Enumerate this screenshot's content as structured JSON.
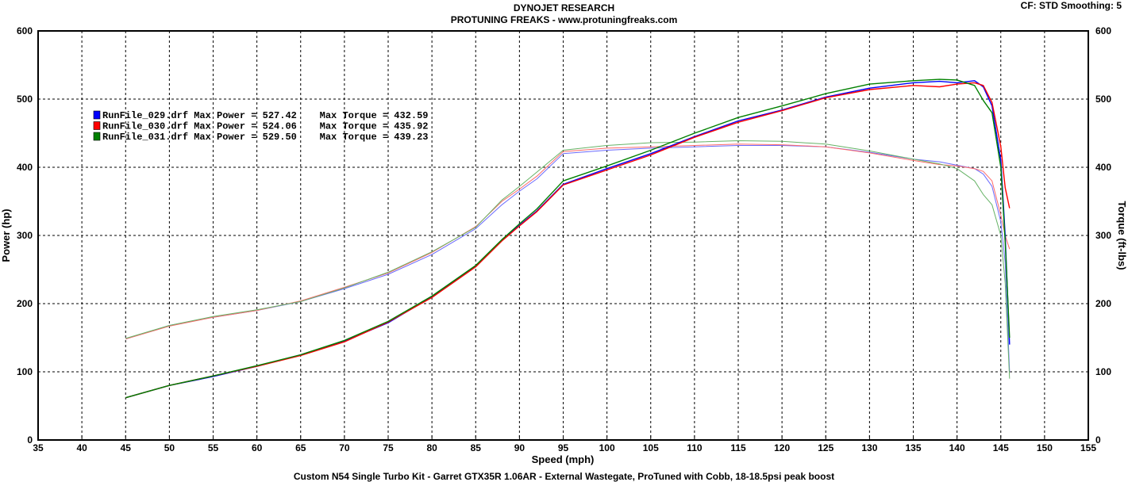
{
  "header": {
    "line1": "DYNOJET RESEARCH",
    "line2": "PROTUNING FREAKS - www.protuningfreaks.com",
    "cf": "CF: STD  Smoothing: 5"
  },
  "footer": "Custom N54 Single Turbo Kit - Garret GTX35R 1.06AR - External Wastegate, ProTuned with Cobb, 18-18.5psi peak boost",
  "chart_data": {
    "type": "line",
    "xlabel": "Speed (mph)",
    "ylabel": "Power (hp)",
    "y2label": "Torque (ft-lbs)",
    "xlim": [
      35,
      155
    ],
    "ylim": [
      0,
      600
    ],
    "y2lim": [
      0,
      600
    ],
    "xticks": [
      "35",
      "40",
      "45",
      "50",
      "55",
      "60",
      "65",
      "70",
      "75",
      "80",
      "85",
      "90",
      "95",
      "100",
      "105",
      "110",
      "115",
      "120",
      "125",
      "130",
      "135",
      "140",
      "145",
      "150",
      "155"
    ],
    "yticks": [
      "0",
      "100",
      "200",
      "300",
      "400",
      "500",
      "600"
    ],
    "grid": true,
    "legend_position": "top-left",
    "legend": [
      {
        "text": "RunFile_029.drf Max Power = 527.42    Max Torque = 432.59",
        "color": "#0000ff"
      },
      {
        "text": "RunFile_030.drf Max Power = 524.06    Max Torque = 435.92",
        "color": "#ff0000"
      },
      {
        "text": "RunFile_031.drf Max Power = 529.50    Max Torque = 439.23",
        "color": "#008000"
      }
    ],
    "x": [
      45,
      50,
      55,
      60,
      65,
      70,
      75,
      80,
      85,
      88,
      90,
      92,
      95,
      100,
      105,
      110,
      115,
      120,
      125,
      130,
      135,
      138,
      140,
      142,
      143,
      144,
      145,
      145.5,
      146
    ],
    "power_series": [
      {
        "name": "RunFile_029.drf",
        "color": "#0000ff",
        "values": [
          62,
          80,
          93,
          108,
          125,
          145,
          172,
          210,
          255,
          293,
          315,
          336,
          375,
          398,
          420,
          445,
          468,
          484,
          503,
          516,
          524,
          526,
          524,
          527,
          518,
          490,
          410,
          300,
          140
        ]
      },
      {
        "name": "RunFile_030.drf",
        "color": "#ff0000",
        "values": [
          62,
          80,
          94,
          108,
          124,
          144,
          173,
          209,
          254,
          292,
          314,
          335,
          374,
          396,
          418,
          444,
          466,
          483,
          502,
          514,
          520,
          518,
          522,
          524,
          520,
          495,
          430,
          370,
          340
        ]
      },
      {
        "name": "RunFile_031.drf",
        "color": "#008000",
        "values": [
          62,
          80,
          94,
          109,
          125,
          146,
          174,
          211,
          256,
          294,
          317,
          339,
          380,
          402,
          425,
          450,
          473,
          490,
          508,
          522,
          527,
          529,
          528,
          520,
          498,
          480,
          400,
          290,
          150
        ]
      }
    ],
    "torque_series": [
      {
        "name": "RunFile_029.drf",
        "color": "#6a6aff",
        "values": [
          148,
          168,
          180,
          190,
          203,
          222,
          243,
          272,
          310,
          345,
          365,
          383,
          420,
          425,
          428,
          430,
          432,
          432,
          430,
          422,
          412,
          408,
          403,
          398,
          390,
          372,
          320,
          260,
          100
        ]
      },
      {
        "name": "RunFile_030.drf",
        "color": "#ff6a6a",
        "values": [
          148,
          167,
          180,
          190,
          204,
          224,
          245,
          275,
          313,
          350,
          368,
          387,
          423,
          428,
          430,
          432,
          434,
          433,
          430,
          421,
          410,
          404,
          402,
          398,
          394,
          380,
          330,
          300,
          280
        ]
      },
      {
        "name": "RunFile_031.drf",
        "color": "#66b366",
        "values": [
          149,
          168,
          181,
          191,
          203,
          223,
          246,
          276,
          312,
          352,
          372,
          393,
          425,
          432,
          436,
          437,
          439,
          438,
          434,
          424,
          412,
          405,
          398,
          380,
          360,
          345,
          300,
          230,
          90
        ]
      }
    ]
  }
}
